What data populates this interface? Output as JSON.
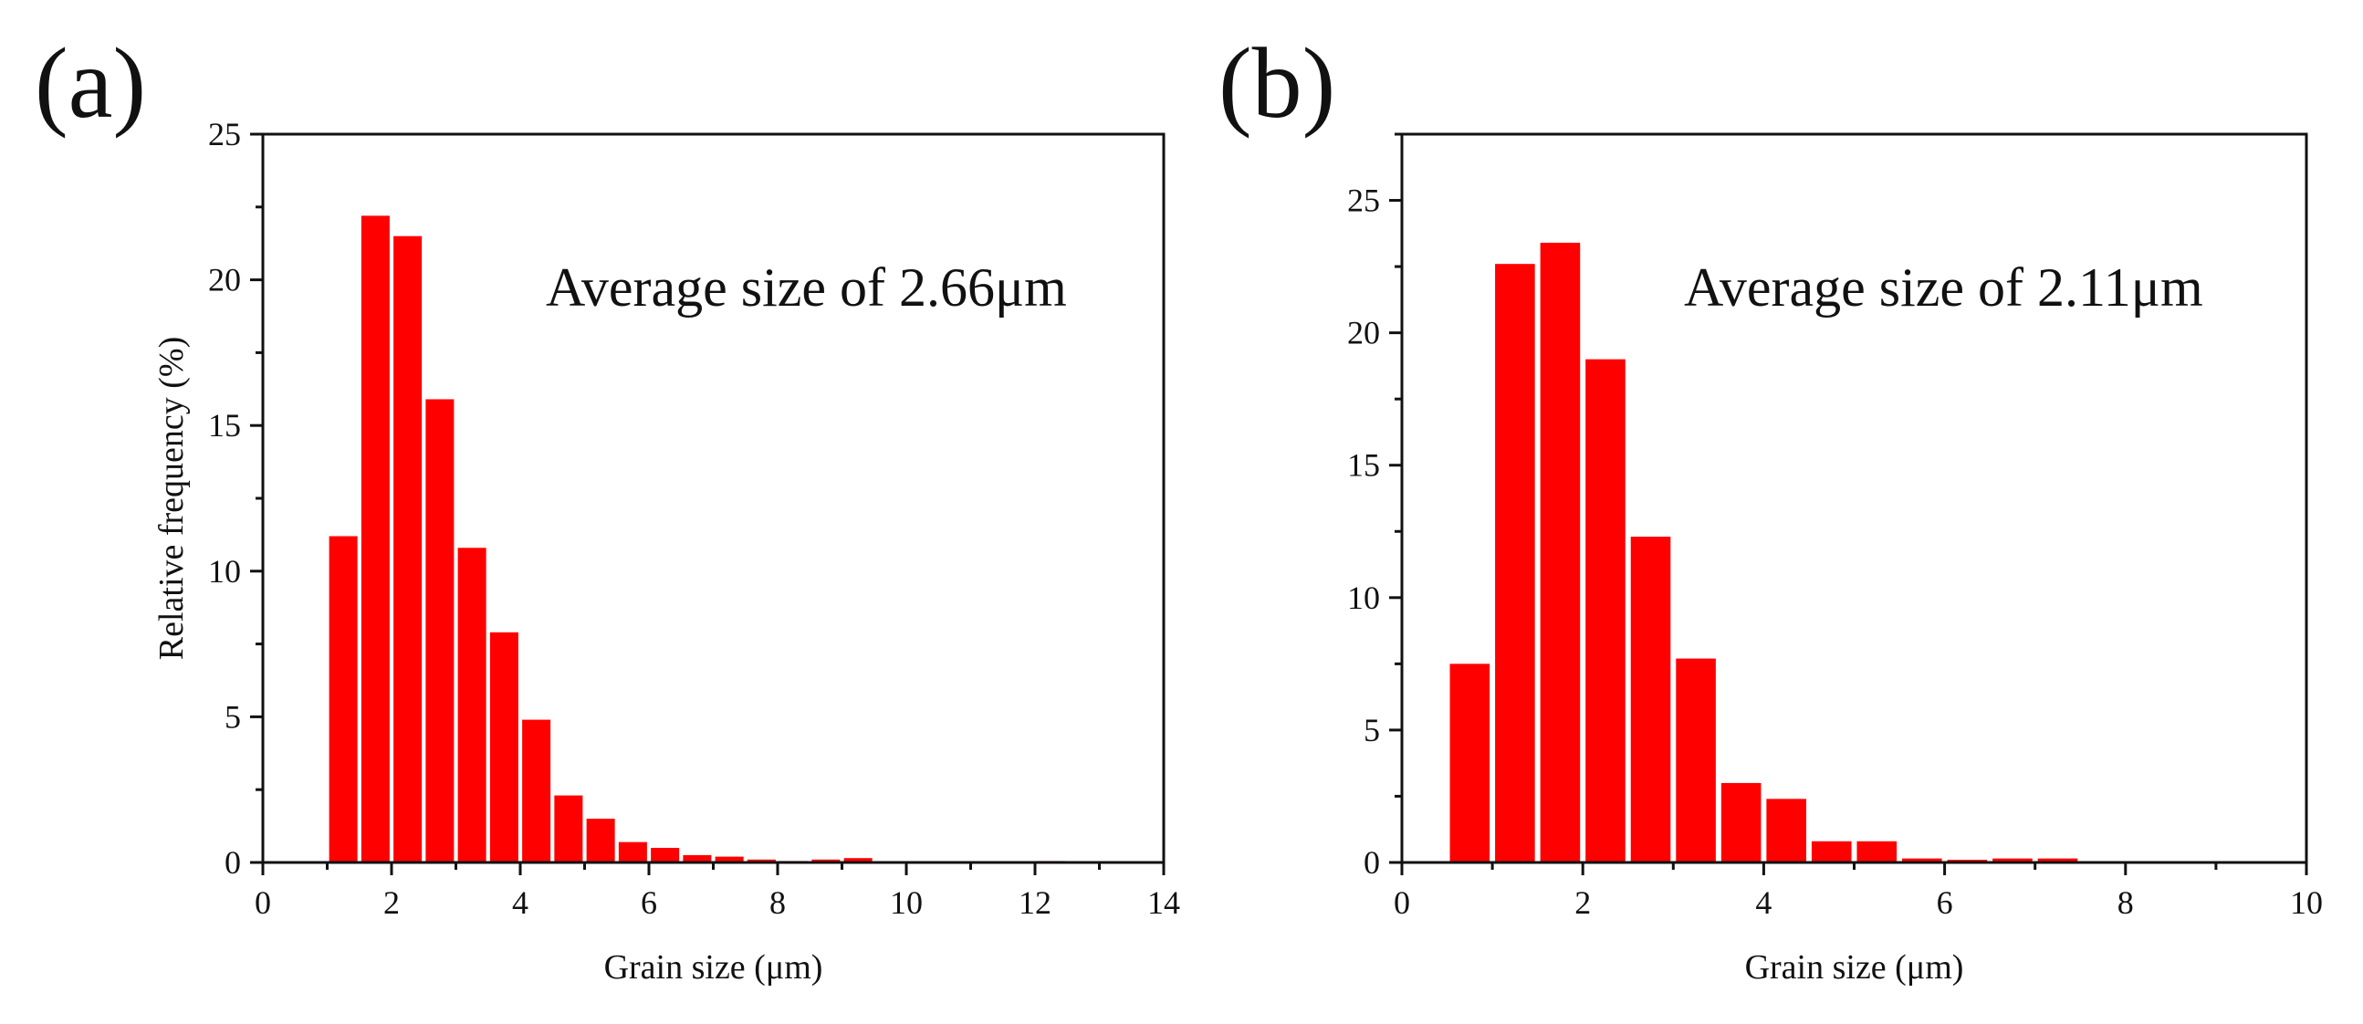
{
  "figure": {
    "panel_labels": [
      "(a)",
      "(b)"
    ]
  },
  "chart_data": [
    {
      "type": "bar",
      "panel": "(a)",
      "title": "",
      "annotation": "Average size of 2.66μm",
      "xlabel": "Grain size (μm)",
      "ylabel": "Relative frequency (%)",
      "xlim": [
        0,
        14
      ],
      "ylim": [
        0,
        25
      ],
      "xticks": [
        0,
        2,
        4,
        6,
        8,
        10,
        12,
        14
      ],
      "yticks": [
        0,
        5,
        10,
        15,
        20,
        25
      ],
      "bar_color": "#ff0000",
      "bin_width": 0.5,
      "bars": [
        {
          "x": 1.25,
          "value": 11.2
        },
        {
          "x": 1.75,
          "value": 22.2
        },
        {
          "x": 2.25,
          "value": 21.5
        },
        {
          "x": 2.75,
          "value": 15.9
        },
        {
          "x": 3.25,
          "value": 10.8
        },
        {
          "x": 3.75,
          "value": 7.9
        },
        {
          "x": 4.25,
          "value": 4.9
        },
        {
          "x": 4.75,
          "value": 2.3
        },
        {
          "x": 5.25,
          "value": 1.5
        },
        {
          "x": 5.75,
          "value": 0.7
        },
        {
          "x": 6.25,
          "value": 0.5
        },
        {
          "x": 6.75,
          "value": 0.25
        },
        {
          "x": 7.25,
          "value": 0.2
        },
        {
          "x": 7.75,
          "value": 0.1
        },
        {
          "x": 8.25,
          "value": 0.05
        },
        {
          "x": 8.75,
          "value": 0.1
        },
        {
          "x": 9.25,
          "value": 0.15
        },
        {
          "x": 9.75,
          "value": 0.03
        },
        {
          "x": 10.25,
          "value": 0.02
        },
        {
          "x": 11.25,
          "value": 0.02
        },
        {
          "x": 12.25,
          "value": 0.05
        },
        {
          "x": 12.75,
          "value": 0.02
        }
      ]
    },
    {
      "type": "bar",
      "panel": "(b)",
      "title": "",
      "annotation": "Average size of 2.11μm",
      "xlabel": "Grain size (μm)",
      "ylabel": "",
      "xlim": [
        0,
        10
      ],
      "ylim": [
        0,
        27.5
      ],
      "xticks": [
        0,
        2,
        4,
        6,
        8,
        10
      ],
      "yticks": [
        0,
        5,
        10,
        15,
        20,
        25
      ],
      "bar_color": "#ff0000",
      "bin_width": 0.5,
      "bars": [
        {
          "x": 0.75,
          "value": 7.5
        },
        {
          "x": 1.25,
          "value": 22.6
        },
        {
          "x": 1.75,
          "value": 23.4
        },
        {
          "x": 2.25,
          "value": 19.0
        },
        {
          "x": 2.75,
          "value": 12.3
        },
        {
          "x": 3.25,
          "value": 7.7
        },
        {
          "x": 3.75,
          "value": 3.0
        },
        {
          "x": 4.25,
          "value": 2.4
        },
        {
          "x": 4.75,
          "value": 0.8
        },
        {
          "x": 5.25,
          "value": 0.8
        },
        {
          "x": 5.75,
          "value": 0.15
        },
        {
          "x": 6.25,
          "value": 0.1
        },
        {
          "x": 6.75,
          "value": 0.15
        },
        {
          "x": 7.25,
          "value": 0.15
        },
        {
          "x": 7.75,
          "value": 0.03
        },
        {
          "x": 8.25,
          "value": 0.03
        },
        {
          "x": 8.75,
          "value": 0.03
        },
        {
          "x": 9.25,
          "value": 0.03
        },
        {
          "x": 9.75,
          "value": 0.05
        }
      ]
    }
  ]
}
